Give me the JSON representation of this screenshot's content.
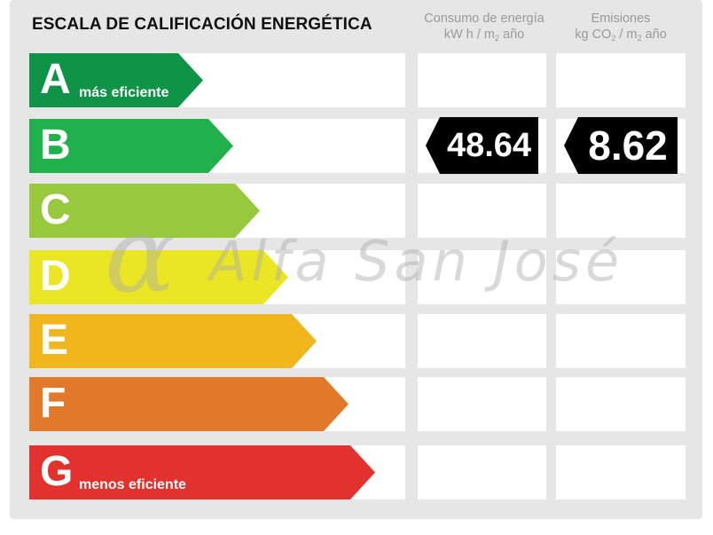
{
  "title": "ESCALA DE CALIFICACIÓN ENERGÉTICA",
  "columns": {
    "consumption": {
      "line1": "Consumo de energía",
      "line2_pre": "kW h / m",
      "line2_sub": "2",
      "line2_post": " año"
    },
    "emissions": {
      "line1": "Emisiones",
      "line2_pre": "kg CO",
      "line2_sub": "2",
      "line2_mid": " / m",
      "line2_sub2": "2",
      "line2_post": " año"
    }
  },
  "ratings": [
    {
      "letter": "A",
      "sublabel": "más eficiente",
      "color": "#0f9447"
    },
    {
      "letter": "B",
      "sublabel": "",
      "color": "#21b14c"
    },
    {
      "letter": "C",
      "sublabel": "",
      "color": "#98c93c"
    },
    {
      "letter": "D",
      "sublabel": "",
      "color": "#ebe624"
    },
    {
      "letter": "E",
      "sublabel": "",
      "color": "#f0b61b"
    },
    {
      "letter": "F",
      "sublabel": "",
      "color": "#e2782a"
    },
    {
      "letter": "G",
      "sublabel": "menos eficiente",
      "color": "#e2322d"
    }
  ],
  "selected_rating": "B",
  "consumption_value": "48.64",
  "emissions_value": "8.62",
  "badge_color": "#000000",
  "watermark": {
    "symbol": "α",
    "text": "Alfa San José"
  }
}
